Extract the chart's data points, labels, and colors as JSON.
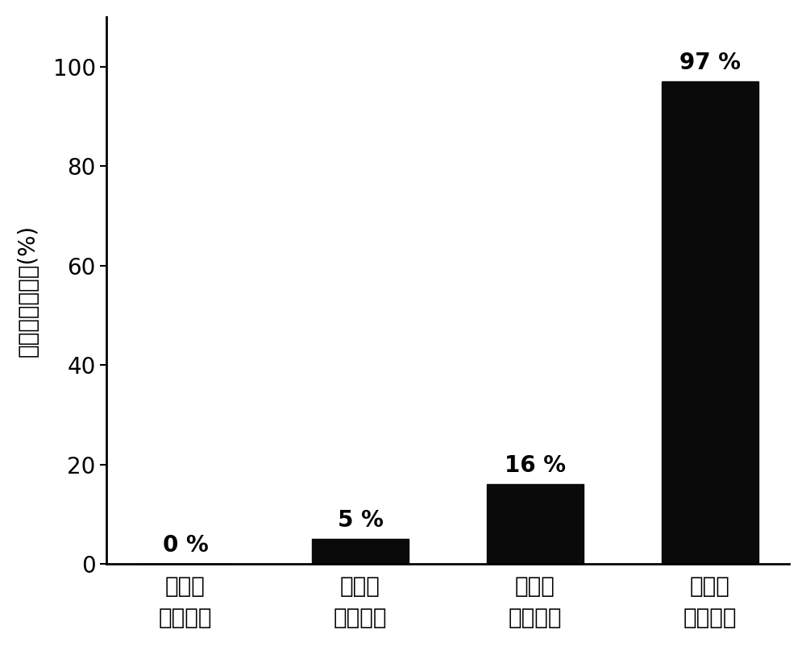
{
  "categories": [
    "无光照\n无抗菌剂",
    "有光照\n无抗菌剂",
    "无光照\n加抗菌剂",
    "有光照\n加抗菌剂"
  ],
  "values": [
    0,
    5,
    16,
    97
  ],
  "bar_color": "#0a0a0a",
  "bar_width": 0.55,
  "ylabel": "金葡球菌失活率(%)",
  "ylim": [
    0,
    110
  ],
  "yticks": [
    0,
    20,
    40,
    60,
    80,
    100
  ],
  "tick_fontsize": 20,
  "ylabel_fontsize": 20,
  "annotation_fontsize": 20,
  "annotation_labels": [
    "0 %",
    "5 %",
    "16 %",
    "97 %"
  ],
  "background_color": "#ffffff"
}
